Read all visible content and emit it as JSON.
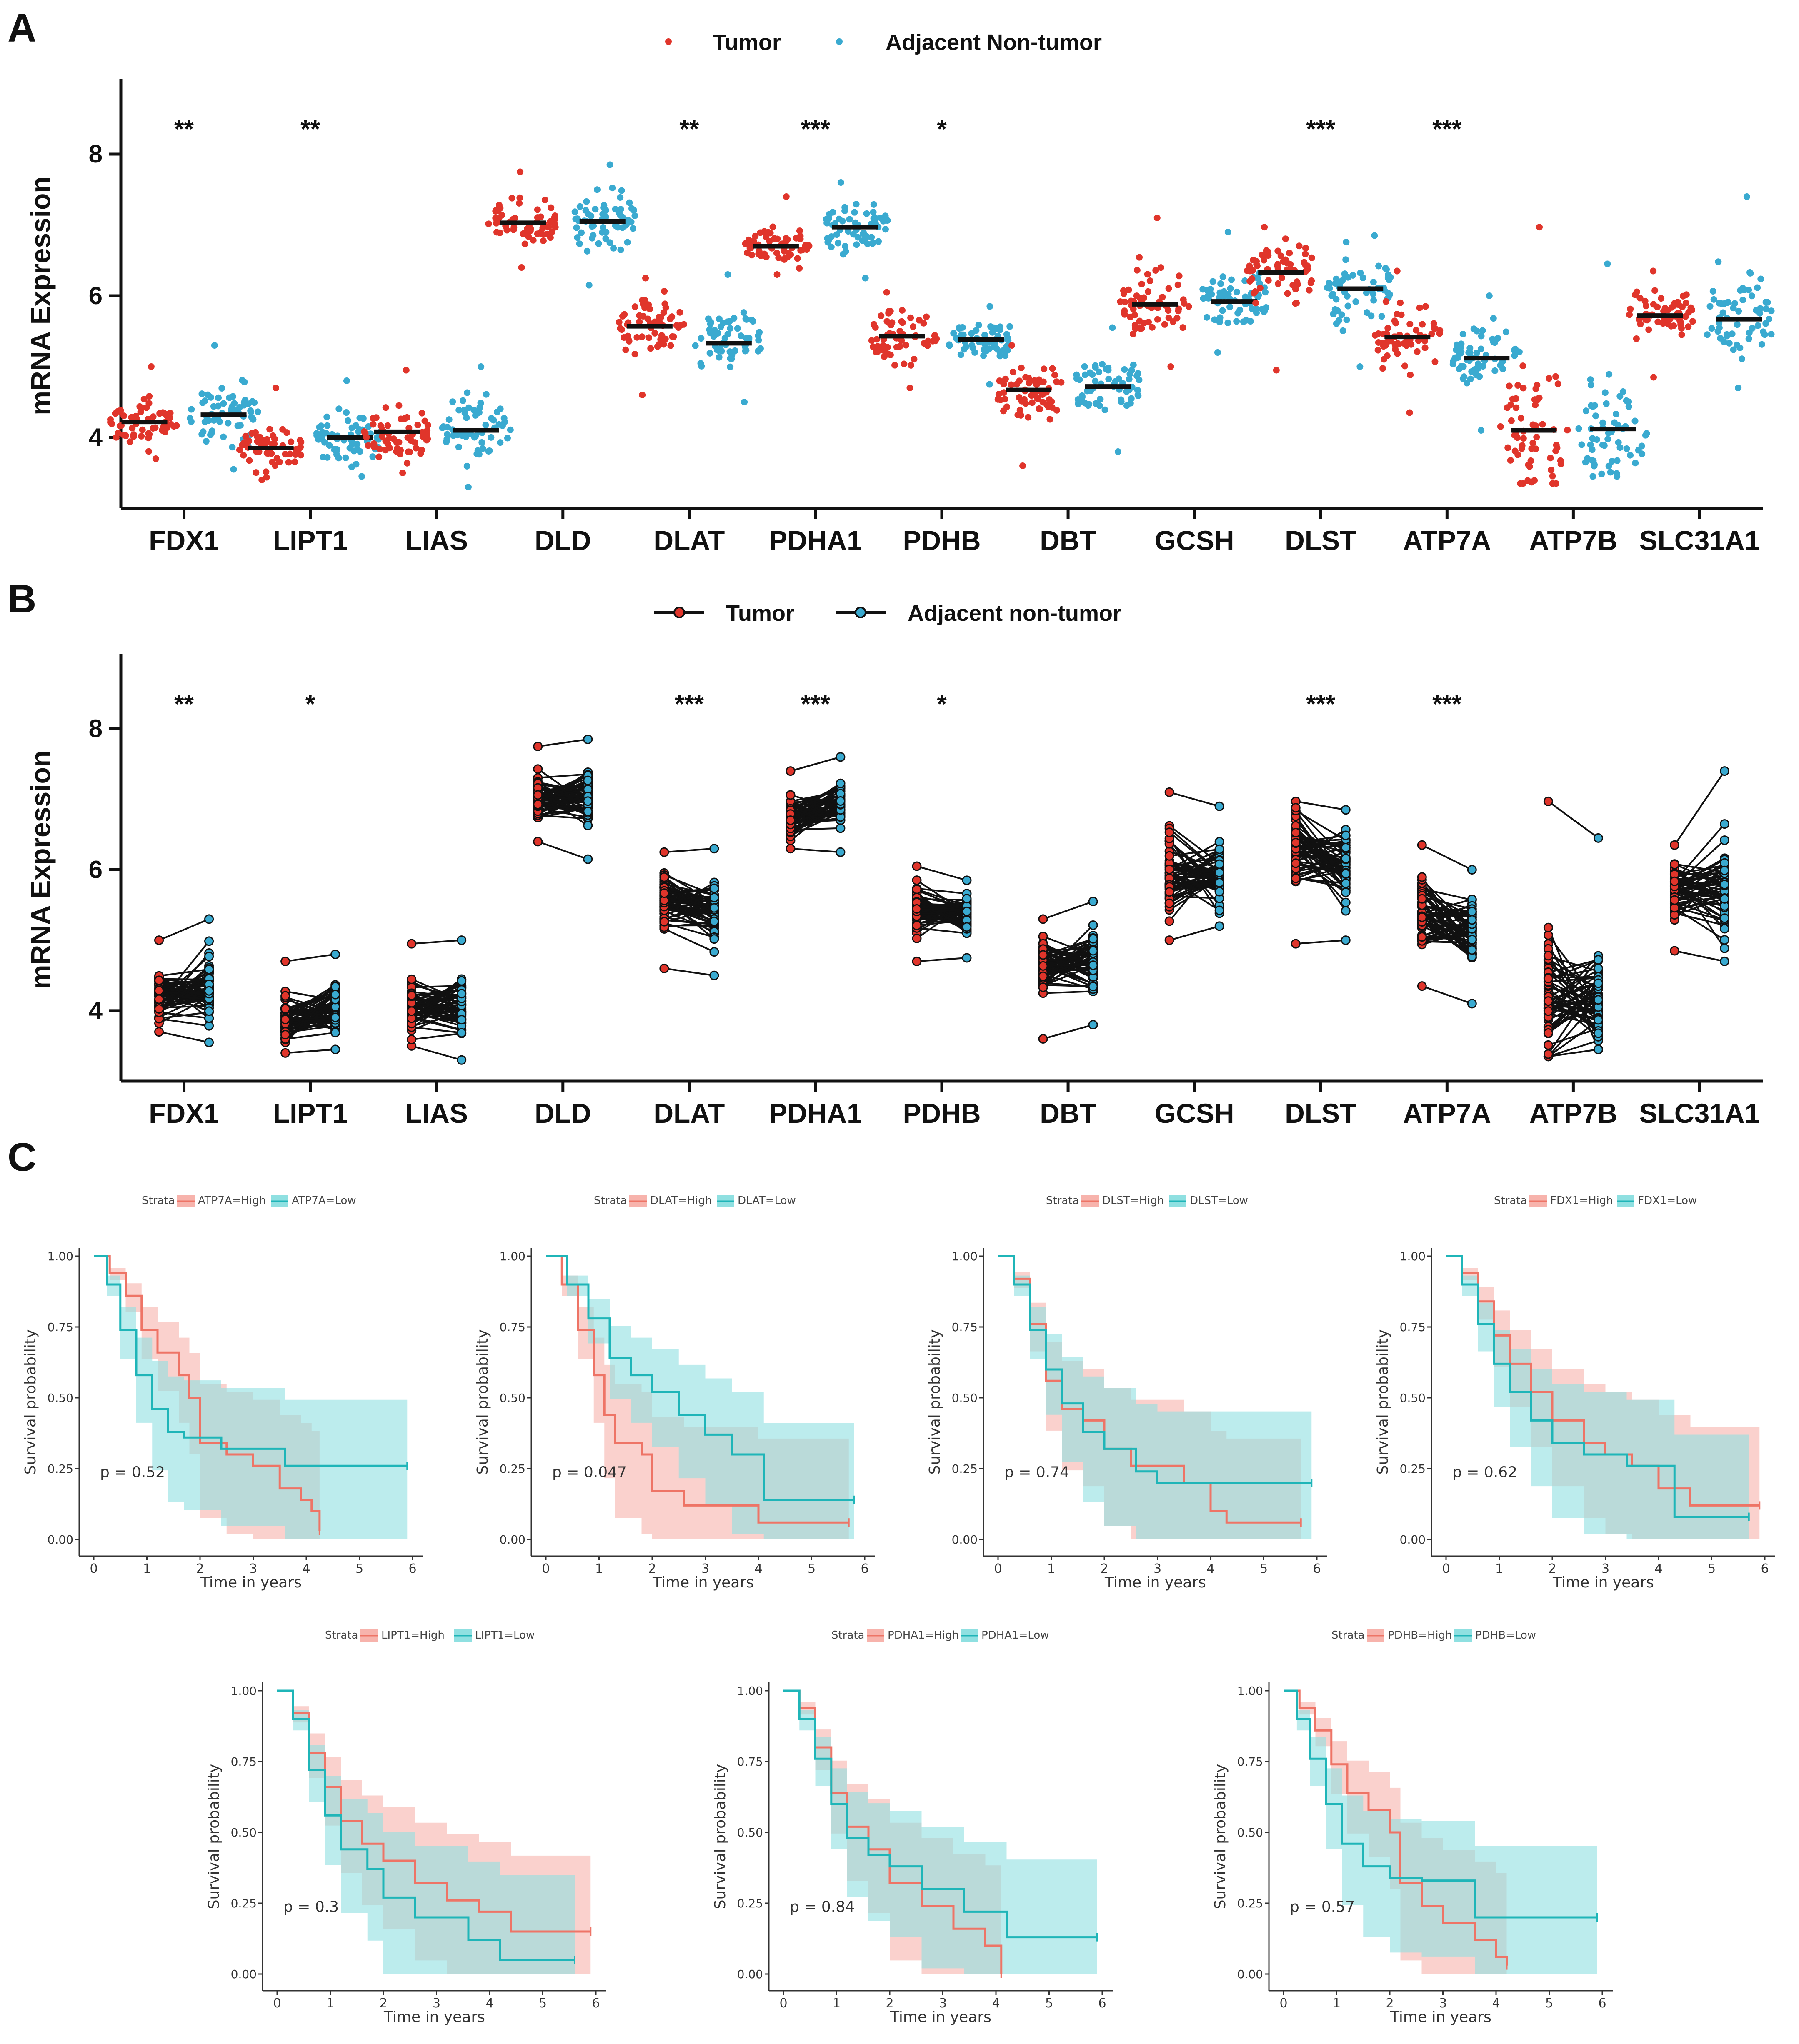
{
  "colors": {
    "tumor": "#e0352b",
    "normal": "#3aaad0",
    "km_high": "#ee7466",
    "km_low": "#1fb5b8",
    "km_high_band": "#f7b3ac",
    "km_low_band": "#8fe0e1",
    "axis": "#111111"
  },
  "panels": {
    "A": "A",
    "B": "B",
    "C": "C"
  },
  "chart_data": [
    {
      "type": "scatter",
      "panel": "A",
      "ylabel": "mRNA Expression",
      "ylim": [
        3.0,
        9.0
      ],
      "yticks": [
        4,
        6,
        8
      ],
      "legend": {
        "tumor": "Tumor",
        "normal": "Adjacent Non-tumor"
      },
      "categories": [
        "FDX1",
        "LIPT1",
        "LIAS",
        "DLD",
        "DLAT",
        "PDHA1",
        "PDHB",
        "DBT",
        "GCSH",
        "DLST",
        "ATP7A",
        "ATP7B",
        "SLC31A1"
      ],
      "significance": [
        "**",
        "**",
        "",
        "",
        "**",
        "***",
        "*",
        "",
        "",
        "***",
        "***",
        "",
        ""
      ],
      "series": [
        {
          "name": "Tumor",
          "median": [
            4.22,
            3.85,
            4.08,
            7.03,
            5.57,
            6.7,
            5.43,
            4.67,
            5.88,
            6.33,
            5.42,
            4.1,
            5.72
          ],
          "min": [
            3.7,
            3.4,
            3.5,
            6.4,
            4.6,
            6.3,
            4.7,
            3.6,
            5.0,
            4.95,
            4.35,
            3.35,
            4.85
          ],
          "max": [
            5.0,
            4.7,
            4.95,
            7.75,
            6.25,
            7.4,
            6.05,
            5.3,
            7.1,
            6.97,
            6.35,
            6.97,
            6.35
          ]
        },
        {
          "name": "Adjacent Non-tumor",
          "median": [
            4.32,
            4.0,
            4.1,
            7.05,
            5.33,
            6.97,
            5.38,
            4.72,
            5.92,
            6.1,
            5.12,
            4.12,
            5.67
          ],
          "min": [
            3.55,
            3.45,
            3.3,
            6.15,
            4.5,
            6.25,
            4.75,
            3.8,
            5.2,
            5.0,
            4.1,
            3.45,
            4.7
          ],
          "max": [
            5.3,
            4.8,
            5.0,
            7.85,
            6.3,
            7.6,
            5.85,
            5.55,
            6.9,
            6.85,
            6.0,
            6.45,
            7.4
          ]
        }
      ]
    },
    {
      "type": "line",
      "panel": "B",
      "ylabel": "mRNA Expression",
      "ylim": [
        3.0,
        9.0
      ],
      "yticks": [
        4,
        6,
        8
      ],
      "legend": {
        "tumor": "Tumor",
        "normal": "Adjacent non-tumor"
      },
      "categories": [
        "FDX1",
        "LIPT1",
        "LIAS",
        "DLD",
        "DLAT",
        "PDHA1",
        "PDHB",
        "DBT",
        "GCSH",
        "DLST",
        "ATP7A",
        "ATP7B",
        "SLC31A1"
      ],
      "significance": [
        "**",
        "*",
        "",
        "",
        "***",
        "***",
        "*",
        "",
        "",
        "***",
        "***",
        "",
        ""
      ]
    },
    {
      "type": "line",
      "panel": "C",
      "xlabel": "Time in years",
      "ylabel": "Survival probability",
      "legend_title": "Strata",
      "xticks": [
        0,
        1,
        2,
        3,
        4,
        5,
        6
      ],
      "yticks": [
        "0.00",
        "0.25",
        "0.50",
        "0.75",
        "1.00"
      ],
      "plots": [
        {
          "gene": "ATP7A",
          "high": "ATP7A=High",
          "low": "ATP7A=Low",
          "p": "p = 0.52",
          "high_curve": [
            [
              0,
              1
            ],
            [
              0.3,
              0.94
            ],
            [
              0.6,
              0.86
            ],
            [
              0.9,
              0.74
            ],
            [
              1.2,
              0.66
            ],
            [
              1.6,
              0.58
            ],
            [
              1.8,
              0.5
            ],
            [
              2.0,
              0.34
            ],
            [
              2.5,
              0.3
            ],
            [
              3.0,
              0.26
            ],
            [
              3.5,
              0.18
            ],
            [
              3.9,
              0.14
            ],
            [
              4.1,
              0.1
            ],
            [
              4.25,
              0.03
            ]
          ],
          "low_curve": [
            [
              0,
              1
            ],
            [
              0.25,
              0.9
            ],
            [
              0.5,
              0.74
            ],
            [
              0.8,
              0.58
            ],
            [
              1.1,
              0.46
            ],
            [
              1.4,
              0.38
            ],
            [
              1.7,
              0.36
            ],
            [
              2.4,
              0.32
            ],
            [
              3.6,
              0.26
            ],
            [
              5.9,
              0.26
            ]
          ]
        },
        {
          "gene": "DLAT",
          "high": "DLAT=High",
          "low": "DLAT=Low",
          "p": "p = 0.047",
          "high_curve": [
            [
              0,
              1
            ],
            [
              0.3,
              0.9
            ],
            [
              0.6,
              0.74
            ],
            [
              0.9,
              0.58
            ],
            [
              1.1,
              0.44
            ],
            [
              1.3,
              0.34
            ],
            [
              1.8,
              0.3
            ],
            [
              2.0,
              0.17
            ],
            [
              2.6,
              0.12
            ],
            [
              4.0,
              0.06
            ],
            [
              5.7,
              0.06
            ]
          ],
          "low_curve": [
            [
              0,
              1
            ],
            [
              0.4,
              0.9
            ],
            [
              0.8,
              0.78
            ],
            [
              1.2,
              0.64
            ],
            [
              1.6,
              0.58
            ],
            [
              2.0,
              0.52
            ],
            [
              2.5,
              0.44
            ],
            [
              3.0,
              0.37
            ],
            [
              3.5,
              0.3
            ],
            [
              4.1,
              0.14
            ],
            [
              5.8,
              0.14
            ]
          ]
        },
        {
          "gene": "DLST",
          "high": "DLST=High",
          "low": "DLST=Low",
          "p": "p = 0.74",
          "high_curve": [
            [
              0,
              1
            ],
            [
              0.3,
              0.92
            ],
            [
              0.6,
              0.76
            ],
            [
              0.9,
              0.56
            ],
            [
              1.2,
              0.46
            ],
            [
              1.6,
              0.42
            ],
            [
              2.0,
              0.32
            ],
            [
              2.5,
              0.26
            ],
            [
              3.5,
              0.2
            ],
            [
              4.0,
              0.1
            ],
            [
              4.3,
              0.06
            ],
            [
              5.7,
              0.06
            ]
          ],
          "low_curve": [
            [
              0,
              1
            ],
            [
              0.3,
              0.9
            ],
            [
              0.6,
              0.74
            ],
            [
              0.9,
              0.6
            ],
            [
              1.2,
              0.48
            ],
            [
              1.6,
              0.38
            ],
            [
              2.0,
              0.32
            ],
            [
              2.6,
              0.24
            ],
            [
              3.0,
              0.2
            ],
            [
              5.9,
              0.2
            ]
          ]
        },
        {
          "gene": "FDX1",
          "high": "FDX1=High",
          "low": "FDX1=Low",
          "p": "p = 0.62",
          "high_curve": [
            [
              0,
              1
            ],
            [
              0.3,
              0.94
            ],
            [
              0.6,
              0.84
            ],
            [
              0.9,
              0.72
            ],
            [
              1.2,
              0.62
            ],
            [
              1.6,
              0.52
            ],
            [
              2.0,
              0.42
            ],
            [
              2.6,
              0.34
            ],
            [
              3.0,
              0.3
            ],
            [
              3.5,
              0.26
            ],
            [
              4.0,
              0.18
            ],
            [
              4.6,
              0.12
            ],
            [
              5.9,
              0.12
            ]
          ],
          "low_curve": [
            [
              0,
              1
            ],
            [
              0.3,
              0.9
            ],
            [
              0.6,
              0.76
            ],
            [
              0.9,
              0.62
            ],
            [
              1.2,
              0.52
            ],
            [
              1.6,
              0.42
            ],
            [
              2.0,
              0.34
            ],
            [
              2.6,
              0.3
            ],
            [
              3.4,
              0.26
            ],
            [
              4.3,
              0.08
            ],
            [
              5.7,
              0.08
            ]
          ]
        },
        {
          "gene": "LIPT1",
          "high": "LIPT1=High",
          "low": "LIPT1=Low",
          "p": "p = 0.3",
          "high_curve": [
            [
              0,
              1
            ],
            [
              0.3,
              0.92
            ],
            [
              0.6,
              0.78
            ],
            [
              0.9,
              0.66
            ],
            [
              1.2,
              0.54
            ],
            [
              1.6,
              0.46
            ],
            [
              2.0,
              0.4
            ],
            [
              2.6,
              0.32
            ],
            [
              3.2,
              0.26
            ],
            [
              3.8,
              0.22
            ],
            [
              4.4,
              0.15
            ],
            [
              5.9,
              0.15
            ]
          ],
          "low_curve": [
            [
              0,
              1
            ],
            [
              0.3,
              0.9
            ],
            [
              0.6,
              0.72
            ],
            [
              0.9,
              0.56
            ],
            [
              1.2,
              0.44
            ],
            [
              1.7,
              0.37
            ],
            [
              2.0,
              0.27
            ],
            [
              2.6,
              0.2
            ],
            [
              3.6,
              0.12
            ],
            [
              4.2,
              0.05
            ],
            [
              5.6,
              0.05
            ]
          ]
        },
        {
          "gene": "PDHA1",
          "high": "PDHA1=High",
          "low": "PDHA1=Low",
          "p": "p = 0.84",
          "high_curve": [
            [
              0,
              1
            ],
            [
              0.3,
              0.94
            ],
            [
              0.6,
              0.8
            ],
            [
              0.9,
              0.64
            ],
            [
              1.2,
              0.52
            ],
            [
              1.6,
              0.44
            ],
            [
              2.0,
              0.32
            ],
            [
              2.6,
              0.24
            ],
            [
              3.2,
              0.16
            ],
            [
              3.8,
              0.1
            ],
            [
              4.1,
              0.0
            ]
          ],
          "low_curve": [
            [
              0,
              1
            ],
            [
              0.3,
              0.9
            ],
            [
              0.6,
              0.76
            ],
            [
              0.9,
              0.6
            ],
            [
              1.2,
              0.48
            ],
            [
              1.6,
              0.42
            ],
            [
              2.0,
              0.38
            ],
            [
              2.6,
              0.3
            ],
            [
              3.4,
              0.22
            ],
            [
              4.2,
              0.13
            ],
            [
              5.9,
              0.13
            ]
          ]
        },
        {
          "gene": "PDHB",
          "high": "PDHB=High",
          "low": "PDHB=Low",
          "p": "p = 0.57",
          "high_curve": [
            [
              0,
              1
            ],
            [
              0.3,
              0.94
            ],
            [
              0.6,
              0.86
            ],
            [
              0.9,
              0.74
            ],
            [
              1.2,
              0.64
            ],
            [
              1.6,
              0.58
            ],
            [
              2.0,
              0.5
            ],
            [
              2.2,
              0.32
            ],
            [
              2.6,
              0.24
            ],
            [
              3.0,
              0.18
            ],
            [
              3.6,
              0.12
            ],
            [
              4.0,
              0.06
            ],
            [
              4.2,
              0.03
            ]
          ],
          "low_curve": [
            [
              0,
              1
            ],
            [
              0.25,
              0.9
            ],
            [
              0.5,
              0.76
            ],
            [
              0.8,
              0.6
            ],
            [
              1.1,
              0.46
            ],
            [
              1.5,
              0.38
            ],
            [
              2.0,
              0.34
            ],
            [
              2.6,
              0.33
            ],
            [
              3.6,
              0.2
            ],
            [
              5.9,
              0.2
            ]
          ]
        }
      ]
    }
  ]
}
